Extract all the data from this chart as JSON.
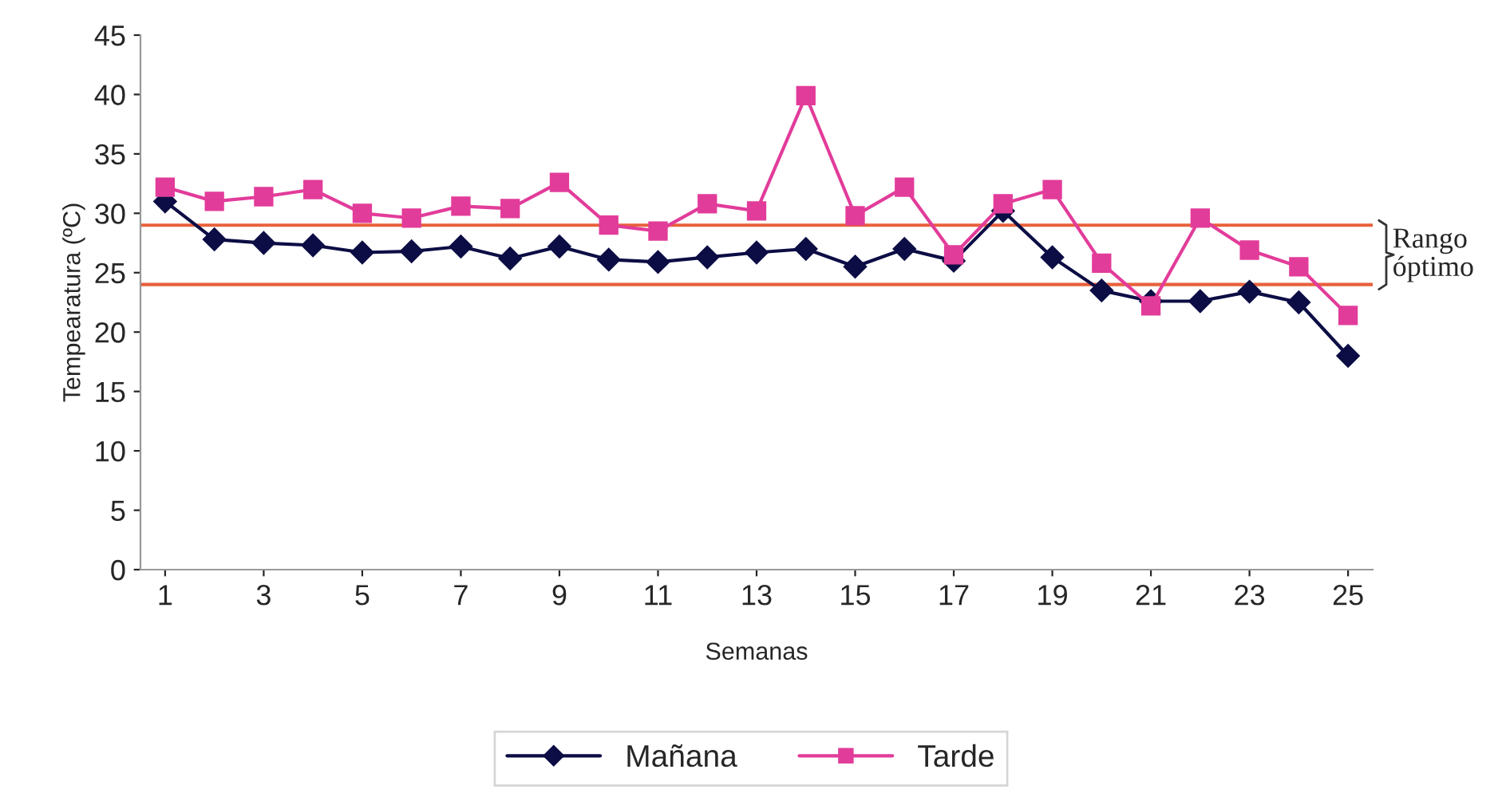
{
  "chart_data": {
    "type": "line",
    "xlabel": "Semanas",
    "ylabel": "Tempearatura (ºC)",
    "x": [
      1,
      2,
      3,
      4,
      5,
      6,
      7,
      8,
      9,
      10,
      11,
      12,
      13,
      14,
      15,
      16,
      17,
      18,
      19,
      20,
      21,
      22,
      23,
      24,
      25
    ],
    "xlim": [
      0.5,
      25.5
    ],
    "xticks": [
      1,
      3,
      5,
      7,
      9,
      11,
      13,
      15,
      17,
      19,
      21,
      23,
      25
    ],
    "ylim": [
      0,
      45
    ],
    "yticks": [
      0,
      5,
      10,
      15,
      20,
      25,
      30,
      35,
      40,
      45
    ],
    "series": [
      {
        "name": "Mañana",
        "color": "#0d0d45",
        "marker": "diamond",
        "values": [
          31,
          27.8,
          27.5,
          27.3,
          26.7,
          26.8,
          27.2,
          26.2,
          27.2,
          26.1,
          25.9,
          26.3,
          26.7,
          27,
          25.5,
          27,
          26,
          30.2,
          26.3,
          23.5,
          22.6,
          22.6,
          23.4,
          22.5,
          18
        ]
      },
      {
        "name": "Tarde",
        "color": "#e23c9a",
        "marker": "square",
        "values": [
          32.2,
          31,
          31.4,
          32,
          30,
          29.6,
          30.6,
          30.4,
          32.6,
          29,
          28.5,
          30.8,
          30.2,
          39.9,
          29.8,
          32.2,
          26.5,
          30.8,
          32,
          25.8,
          22.2,
          29.6,
          26.9,
          25.5,
          21.4
        ]
      }
    ],
    "ref_lines": [
      {
        "axis": "y",
        "value": 29,
        "color": "#e8603c"
      },
      {
        "axis": "y",
        "value": 24,
        "color": "#e8603c"
      }
    ],
    "annotations": [
      "Rango\nóptimo"
    ],
    "grid": false,
    "legend": "bottom",
    "line_style": "solid"
  }
}
